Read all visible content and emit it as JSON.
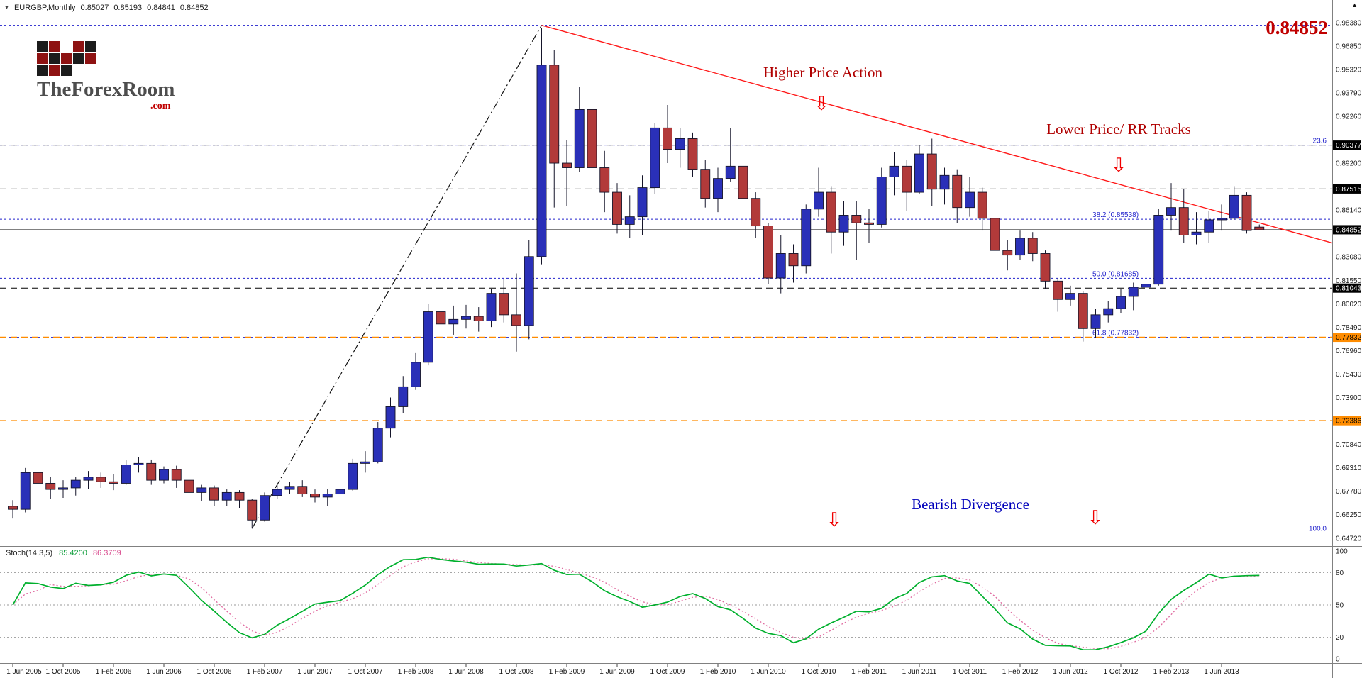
{
  "header": {
    "marker_icon": "▼",
    "symbol": "EURGBP,Monthly",
    "open": "0.85027",
    "high": "0.85193",
    "low": "0.84841",
    "close": "0.84852"
  },
  "logo": {
    "brand": "TheForexRoom",
    "tld": ".com",
    "pixel_colors": [
      "#1c1c1c",
      "#8e1212",
      null,
      "#8e1212",
      "#1c1c1c",
      "#8e1212",
      "#1c1c1c",
      "#8e1212",
      "#1c1c1c",
      "#8e1212",
      "#1c1c1c",
      "#8e1212",
      "#1c1c1c",
      null,
      null
    ]
  },
  "annotations": {
    "big_price": "0.84852",
    "higher_price_action": "Higher Price Action",
    "lower_price_rr": "Lower Price/ RR Tracks",
    "bearish_divergence": "Bearish Divergence",
    "down_arrow_glyph": "⇩"
  },
  "icons": {
    "scale_marker": "▲"
  },
  "colors": {
    "bull": "#2a30b8",
    "bear": "#b23a3a",
    "wick": "#15152a",
    "trendline": "#ff1a1a",
    "impulse": "#111111",
    "fib": "#2222cc",
    "orange_level": "#ff8c00",
    "annotation_red": "#b00000",
    "annotation_blue": "#0000bb"
  },
  "indicator": {
    "label": "Stoch(14,3,5)",
    "k_value": "85.4200",
    "d_value": "86.3709",
    "levels": [
      20,
      50,
      80
    ],
    "range": [
      0,
      100
    ],
    "axis_labels": [
      "100",
      "80",
      "50",
      "20",
      "0"
    ],
    "k_color": "#00b02d",
    "d_color": "#e06ba0"
  },
  "time_axis": {
    "step_months": 4,
    "labels": [
      "1 Jun 2005",
      "1 Oct 2005",
      "1 Feb 2006",
      "1 Jun 2006",
      "1 Oct 2006",
      "1 Feb 2007",
      "1 Jun 2007",
      "1 Oct 2007",
      "1 Feb 2008",
      "1 Jun 2008",
      "1 Oct 2008",
      "1 Feb 2009",
      "1 Jun 2009",
      "1 Oct 2009",
      "1 Feb 2010",
      "1 Jun 2010",
      "1 Oct 2010",
      "1 Feb 2011",
      "1 Jun 2011",
      "1 Oct 2011",
      "1 Feb 2012",
      "1 Jun 2012",
      "1 Oct 2012",
      "1 Feb 2013",
      "1 Jun 2013"
    ]
  },
  "chart_data": {
    "type": "candlestick",
    "title": "EURGBP, Monthly",
    "symbol": "EURGBP",
    "timeframe": "Monthly",
    "xlabel": "",
    "ylabel": "",
    "price_axis": {
      "visible_range": [
        0.642,
        0.9985
      ],
      "step": 0.0153,
      "ticks": [
        "0.98380",
        "0.96850",
        "0.95320",
        "0.93790",
        "0.92260",
        "0.90730",
        "0.89200",
        "0.87670",
        "0.86140",
        "0.84610",
        "0.83080",
        "0.81550",
        "0.80020",
        "0.78490",
        "0.76960",
        "0.75430",
        "0.73900",
        "0.72370",
        "0.70840",
        "0.69310",
        "0.67780",
        "0.66250",
        "0.64720"
      ]
    },
    "columns": [
      "month",
      "open",
      "high",
      "low",
      "close"
    ],
    "candles": [
      [
        "2005-06",
        0.668,
        0.672,
        0.66,
        0.666
      ],
      [
        "2005-07",
        0.666,
        0.693,
        0.664,
        0.69
      ],
      [
        "2005-08",
        0.69,
        0.6935,
        0.676,
        0.683
      ],
      [
        "2005-09",
        0.683,
        0.687,
        0.673,
        0.679
      ],
      [
        "2005-10",
        0.679,
        0.685,
        0.6735,
        0.68
      ],
      [
        "2005-11",
        0.68,
        0.687,
        0.675,
        0.685
      ],
      [
        "2005-12",
        0.685,
        0.691,
        0.6795,
        0.687
      ],
      [
        "2006-01",
        0.687,
        0.69,
        0.68,
        0.684
      ],
      [
        "2006-02",
        0.684,
        0.689,
        0.6785,
        0.683
      ],
      [
        "2006-03",
        0.683,
        0.698,
        0.682,
        0.695
      ],
      [
        "2006-04",
        0.695,
        0.7,
        0.69,
        0.696
      ],
      [
        "2006-05",
        0.696,
        0.6985,
        0.682,
        0.685
      ],
      [
        "2006-06",
        0.685,
        0.694,
        0.683,
        0.692
      ],
      [
        "2006-07",
        0.692,
        0.6945,
        0.68,
        0.685
      ],
      [
        "2006-08",
        0.685,
        0.6865,
        0.672,
        0.677
      ],
      [
        "2006-09",
        0.677,
        0.682,
        0.6715,
        0.68
      ],
      [
        "2006-10",
        0.68,
        0.6815,
        0.668,
        0.672
      ],
      [
        "2006-11",
        0.672,
        0.679,
        0.668,
        0.677
      ],
      [
        "2006-12",
        0.677,
        0.6785,
        0.667,
        0.672
      ],
      [
        "2007-01",
        0.672,
        0.673,
        0.6535,
        0.659
      ],
      [
        "2007-02",
        0.659,
        0.677,
        0.658,
        0.675
      ],
      [
        "2007-03",
        0.675,
        0.682,
        0.673,
        0.679
      ],
      [
        "2007-04",
        0.679,
        0.684,
        0.676,
        0.681
      ],
      [
        "2007-05",
        0.681,
        0.685,
        0.674,
        0.676
      ],
      [
        "2007-06",
        0.676,
        0.679,
        0.6705,
        0.674
      ],
      [
        "2007-07",
        0.674,
        0.6795,
        0.668,
        0.676
      ],
      [
        "2007-08",
        0.676,
        0.686,
        0.673,
        0.679
      ],
      [
        "2007-09",
        0.679,
        0.699,
        0.678,
        0.696
      ],
      [
        "2007-10",
        0.696,
        0.704,
        0.69,
        0.697
      ],
      [
        "2007-11",
        0.697,
        0.723,
        0.696,
        0.719
      ],
      [
        "2007-12",
        0.719,
        0.739,
        0.713,
        0.733
      ],
      [
        "2008-01",
        0.733,
        0.753,
        0.729,
        0.746
      ],
      [
        "2008-02",
        0.746,
        0.768,
        0.744,
        0.762
      ],
      [
        "2008-03",
        0.762,
        0.8,
        0.76,
        0.795
      ],
      [
        "2008-04",
        0.795,
        0.81,
        0.782,
        0.787
      ],
      [
        "2008-05",
        0.787,
        0.799,
        0.78,
        0.79
      ],
      [
        "2008-06",
        0.79,
        0.7995,
        0.784,
        0.792
      ],
      [
        "2008-07",
        0.792,
        0.798,
        0.782,
        0.789
      ],
      [
        "2008-08",
        0.789,
        0.81,
        0.785,
        0.807
      ],
      [
        "2008-09",
        0.807,
        0.8165,
        0.788,
        0.793
      ],
      [
        "2008-10",
        0.793,
        0.82,
        0.769,
        0.786
      ],
      [
        "2008-11",
        0.786,
        0.842,
        0.777,
        0.831
      ],
      [
        "2008-12",
        0.831,
        0.9803,
        0.826,
        0.956
      ],
      [
        "2009-01",
        0.956,
        0.966,
        0.863,
        0.892
      ],
      [
        "2009-02",
        0.892,
        0.9072,
        0.864,
        0.889
      ],
      [
        "2009-03",
        0.889,
        0.942,
        0.886,
        0.927
      ],
      [
        "2009-04",
        0.927,
        0.93,
        0.875,
        0.889
      ],
      [
        "2009-05",
        0.889,
        0.9,
        0.86,
        0.873
      ],
      [
        "2009-06",
        0.873,
        0.879,
        0.846,
        0.852
      ],
      [
        "2009-07",
        0.852,
        0.871,
        0.843,
        0.857
      ],
      [
        "2009-08",
        0.857,
        0.884,
        0.845,
        0.876
      ],
      [
        "2009-09",
        0.876,
        0.918,
        0.872,
        0.915
      ],
      [
        "2009-10",
        0.915,
        0.93,
        0.892,
        0.901
      ],
      [
        "2009-11",
        0.901,
        0.915,
        0.889,
        0.908
      ],
      [
        "2009-12",
        0.908,
        0.912,
        0.883,
        0.888
      ],
      [
        "2010-01",
        0.888,
        0.894,
        0.863,
        0.869
      ],
      [
        "2010-02",
        0.869,
        0.889,
        0.86,
        0.882
      ],
      [
        "2010-03",
        0.882,
        0.915,
        0.88,
        0.89
      ],
      [
        "2010-04",
        0.89,
        0.8915,
        0.86,
        0.869
      ],
      [
        "2010-05",
        0.869,
        0.873,
        0.843,
        0.851
      ],
      [
        "2010-06",
        0.851,
        0.853,
        0.813,
        0.817
      ],
      [
        "2010-07",
        0.817,
        0.845,
        0.807,
        0.833
      ],
      [
        "2010-08",
        0.833,
        0.839,
        0.814,
        0.825
      ],
      [
        "2010-09",
        0.825,
        0.865,
        0.82,
        0.862
      ],
      [
        "2010-10",
        0.862,
        0.889,
        0.857,
        0.873
      ],
      [
        "2010-11",
        0.873,
        0.877,
        0.833,
        0.847
      ],
      [
        "2010-12",
        0.847,
        0.867,
        0.838,
        0.858
      ],
      [
        "2011-01",
        0.858,
        0.867,
        0.829,
        0.853
      ],
      [
        "2011-02",
        0.853,
        0.862,
        0.84,
        0.852
      ],
      [
        "2011-03",
        0.852,
        0.889,
        0.85,
        0.883
      ],
      [
        "2011-04",
        0.883,
        0.899,
        0.871,
        0.89
      ],
      [
        "2011-05",
        0.89,
        0.894,
        0.861,
        0.873
      ],
      [
        "2011-06",
        0.873,
        0.904,
        0.872,
        0.898
      ],
      [
        "2011-07",
        0.898,
        0.908,
        0.864,
        0.875
      ],
      [
        "2011-08",
        0.875,
        0.889,
        0.865,
        0.884
      ],
      [
        "2011-09",
        0.884,
        0.888,
        0.853,
        0.863
      ],
      [
        "2011-10",
        0.863,
        0.883,
        0.857,
        0.873
      ],
      [
        "2011-11",
        0.873,
        0.876,
        0.848,
        0.856
      ],
      [
        "2011-12",
        0.856,
        0.859,
        0.828,
        0.835
      ],
      [
        "2012-01",
        0.835,
        0.842,
        0.822,
        0.832
      ],
      [
        "2012-02",
        0.832,
        0.848,
        0.829,
        0.843
      ],
      [
        "2012-03",
        0.843,
        0.847,
        0.828,
        0.833
      ],
      [
        "2012-04",
        0.833,
        0.835,
        0.81,
        0.815
      ],
      [
        "2012-05",
        0.815,
        0.817,
        0.795,
        0.803
      ],
      [
        "2012-06",
        0.803,
        0.812,
        0.799,
        0.807
      ],
      [
        "2012-07",
        0.807,
        0.8085,
        0.7755,
        0.784
      ],
      [
        "2012-08",
        0.784,
        0.797,
        0.778,
        0.793
      ],
      [
        "2012-09",
        0.793,
        0.802,
        0.788,
        0.797
      ],
      [
        "2012-10",
        0.797,
        0.81,
        0.794,
        0.805
      ],
      [
        "2012-11",
        0.805,
        0.814,
        0.796,
        0.811
      ],
      [
        "2012-12",
        0.811,
        0.818,
        0.804,
        0.813
      ],
      [
        "2013-01",
        0.813,
        0.862,
        0.812,
        0.858
      ],
      [
        "2013-02",
        0.858,
        0.879,
        0.848,
        0.863
      ],
      [
        "2013-03",
        0.863,
        0.875,
        0.84,
        0.845
      ],
      [
        "2013-04",
        0.845,
        0.86,
        0.839,
        0.847
      ],
      [
        "2013-05",
        0.847,
        0.861,
        0.84,
        0.855
      ],
      [
        "2013-06",
        0.855,
        0.865,
        0.848,
        0.856
      ],
      [
        "2013-07",
        0.856,
        0.877,
        0.855,
        0.871
      ],
      [
        "2013-08",
        0.871,
        0.873,
        0.846,
        0.848
      ],
      [
        "2013-09",
        0.85027,
        0.85193,
        0.84841,
        0.84852
      ]
    ],
    "price_lines": [
      {
        "price": 0.90377,
        "label": "0.90377",
        "color": "#000000",
        "style": "dashed"
      },
      {
        "price": 0.87515,
        "label": "0.87515",
        "color": "#000000",
        "style": "dashed"
      },
      {
        "price": 0.84852,
        "label": "0.84852",
        "color": "#000000",
        "style": "solid",
        "role": "current-price"
      },
      {
        "price": 0.81043,
        "label": "0.81043",
        "color": "#000000",
        "style": "dashed"
      },
      {
        "price": 0.77832,
        "label": "0.77832",
        "color": "#ff8c00",
        "style": "dashed"
      },
      {
        "price": 0.72386,
        "label": "0.72386",
        "color": "#ff8c00",
        "style": "dashed"
      }
    ],
    "fibonacci": {
      "color": "#2222cc",
      "levels": [
        {
          "pct": "0.0",
          "price": 0.98199,
          "label": ""
        },
        {
          "pct": "23.6",
          "price": 0.90377,
          "label": "23.6"
        },
        {
          "pct": "38.2",
          "price": 0.85538,
          "label": "38.2 (0.85538)"
        },
        {
          "pct": "50.0",
          "price": 0.81685,
          "label": "50.0 (0.81685)"
        },
        {
          "pct": "61.8",
          "price": 0.77832,
          "label": "61.8 (0.77832)"
        },
        {
          "pct": "100.0",
          "price": 0.65055,
          "label": "100.0"
        }
      ]
    },
    "trendline": {
      "color": "#ff1a1a",
      "from": {
        "t": "2008-12",
        "price": 0.982
      },
      "to": {
        "t": "2013-09",
        "price": 0.853
      },
      "extend_right": true
    },
    "impulse_line": {
      "color": "#111111",
      "style": "dashdot",
      "from": {
        "t": "2007-01",
        "price": 0.6535
      },
      "to": {
        "t": "2008-12",
        "price": 0.982
      }
    }
  }
}
